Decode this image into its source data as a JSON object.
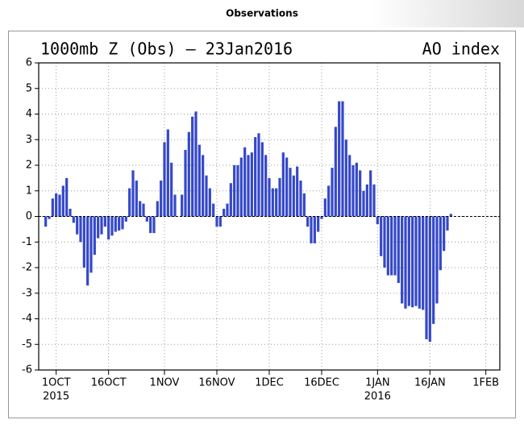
{
  "header": {
    "title": "Observations"
  },
  "chart_data": {
    "type": "bar",
    "title": "1000mb Z (Obs) – 23Jan2016",
    "subtitle": "AO index",
    "color": "#3548c8",
    "grid": true,
    "x": [
      "2015-09-28",
      "2015-09-29",
      "2015-09-30",
      "2015-10-01",
      "2015-10-02",
      "2015-10-03",
      "2015-10-04",
      "2015-10-05",
      "2015-10-06",
      "2015-10-07",
      "2015-10-08",
      "2015-10-09",
      "2015-10-10",
      "2015-10-11",
      "2015-10-12",
      "2015-10-13",
      "2015-10-14",
      "2015-10-15",
      "2015-10-16",
      "2015-10-17",
      "2015-10-18",
      "2015-10-19",
      "2015-10-20",
      "2015-10-21",
      "2015-10-22",
      "2015-10-23",
      "2015-10-24",
      "2015-10-25",
      "2015-10-26",
      "2015-10-27",
      "2015-10-28",
      "2015-10-29",
      "2015-10-30",
      "2015-10-31",
      "2015-11-01",
      "2015-11-02",
      "2015-11-03",
      "2015-11-04",
      "2015-11-05",
      "2015-11-06",
      "2015-11-07",
      "2015-11-08",
      "2015-11-09",
      "2015-11-10",
      "2015-11-11",
      "2015-11-12",
      "2015-11-13",
      "2015-11-14",
      "2015-11-15",
      "2015-11-16",
      "2015-11-17",
      "2015-11-18",
      "2015-11-19",
      "2015-11-20",
      "2015-11-21",
      "2015-11-22",
      "2015-11-23",
      "2015-11-24",
      "2015-11-25",
      "2015-11-26",
      "2015-11-27",
      "2015-11-28",
      "2015-11-29",
      "2015-11-30",
      "2015-12-01",
      "2015-12-02",
      "2015-12-03",
      "2015-12-04",
      "2015-12-05",
      "2015-12-06",
      "2015-12-07",
      "2015-12-08",
      "2015-12-09",
      "2015-12-10",
      "2015-12-11",
      "2015-12-12",
      "2015-12-13",
      "2015-12-14",
      "2015-12-15",
      "2015-12-16",
      "2015-12-17",
      "2015-12-18",
      "2015-12-19",
      "2015-12-20",
      "2015-12-21",
      "2015-12-22",
      "2015-12-23",
      "2015-12-24",
      "2015-12-25",
      "2015-12-26",
      "2015-12-27",
      "2015-12-28",
      "2015-12-29",
      "2015-12-30",
      "2015-12-31",
      "2016-01-01",
      "2016-01-02",
      "2016-01-03",
      "2016-01-04",
      "2016-01-05",
      "2016-01-06",
      "2016-01-07",
      "2016-01-08",
      "2016-01-09",
      "2016-01-10",
      "2016-01-11",
      "2016-01-12",
      "2016-01-13",
      "2016-01-14",
      "2016-01-15",
      "2016-01-16",
      "2016-01-17",
      "2016-01-18",
      "2016-01-19",
      "2016-01-20",
      "2016-01-21",
      "2016-01-22"
    ],
    "values": [
      -0.4,
      -0.1,
      0.7,
      0.9,
      0.85,
      1.2,
      1.5,
      0.3,
      -0.25,
      -0.7,
      -1.0,
      -2.0,
      -2.7,
      -2.2,
      -1.5,
      -0.85,
      -0.7,
      -0.4,
      -0.9,
      -0.75,
      -0.6,
      -0.55,
      -0.5,
      -0.2,
      1.1,
      1.8,
      1.4,
      0.6,
      0.5,
      -0.2,
      -0.65,
      -0.65,
      0.6,
      1.4,
      2.9,
      3.4,
      2.1,
      0.85,
      0.0,
      0.85,
      2.6,
      3.3,
      3.9,
      4.1,
      2.8,
      2.4,
      1.6,
      1.1,
      0.5,
      -0.4,
      -0.4,
      0.3,
      0.5,
      1.3,
      2.0,
      2.0,
      2.3,
      2.7,
      2.4,
      2.5,
      3.1,
      3.25,
      2.9,
      2.4,
      1.5,
      1.1,
      1.1,
      1.5,
      2.5,
      2.3,
      1.9,
      1.6,
      1.95,
      1.4,
      0.9,
      -0.4,
      -1.05,
      -1.05,
      -0.6,
      -0.1,
      0.7,
      1.2,
      1.9,
      3.5,
      4.5,
      4.5,
      3.0,
      2.4,
      2.0,
      2.1,
      1.8,
      1.0,
      1.25,
      1.8,
      1.25,
      -0.3,
      -1.55,
      -2.0,
      -2.3,
      -2.3,
      -2.3,
      -2.6,
      -3.4,
      -3.6,
      -3.5,
      -3.55,
      -3.5,
      -3.6,
      -3.65,
      -4.8,
      -4.9,
      -4.2,
      -3.4,
      -2.1,
      -1.35,
      -0.55,
      0.1
    ],
    "xlim": [
      "2015-09-26",
      "2016-02-05"
    ],
    "xticks": [
      {
        "value": "2015-10-01",
        "label": "1OCT",
        "year": "2015"
      },
      {
        "value": "2015-10-16",
        "label": "16OCT"
      },
      {
        "value": "2015-11-01",
        "label": "1NOV"
      },
      {
        "value": "2015-11-16",
        "label": "16NOV"
      },
      {
        "value": "2015-12-01",
        "label": "1DEC"
      },
      {
        "value": "2015-12-16",
        "label": "16DEC"
      },
      {
        "value": "2016-01-01",
        "label": "1JAN",
        "year": "2016"
      },
      {
        "value": "2016-01-16",
        "label": "16JAN"
      },
      {
        "value": "2016-02-01",
        "label": "1FEB"
      }
    ],
    "ylim": [
      -6,
      6
    ],
    "yticks": [
      -6,
      -5,
      -4,
      -3,
      -2,
      -1,
      0,
      1,
      2,
      3,
      4,
      5,
      6
    ]
  }
}
